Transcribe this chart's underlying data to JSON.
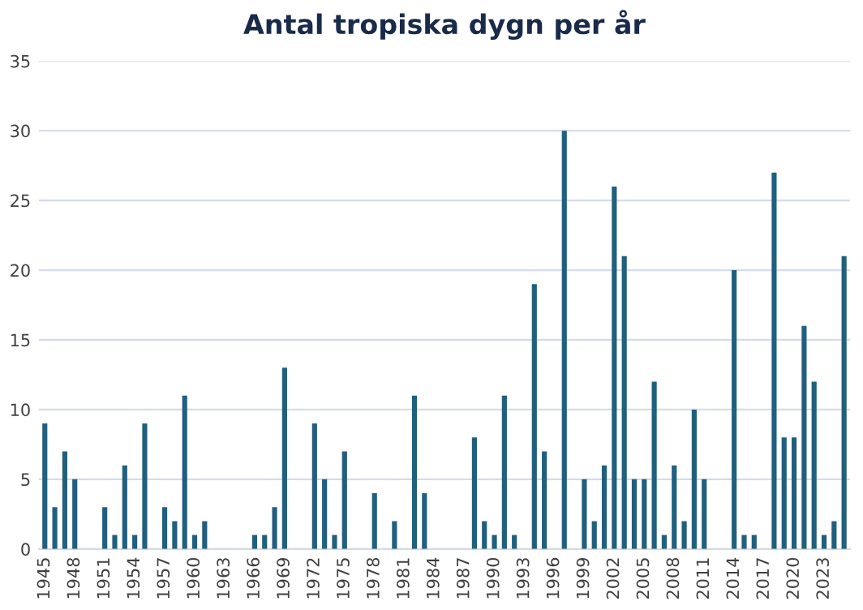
{
  "chart_data": {
    "type": "bar",
    "title": "Antal tropiska dygn per år",
    "categories": [
      "1945",
      null,
      null,
      "1948",
      null,
      null,
      "1951",
      null,
      null,
      "1954",
      null,
      null,
      "1957",
      null,
      null,
      "1960",
      null,
      null,
      "1963",
      null,
      null,
      "1966",
      null,
      null,
      "1969",
      null,
      null,
      "1972",
      null,
      null,
      "1975",
      null,
      null,
      "1978",
      null,
      null,
      "1981",
      null,
      null,
      "1984",
      null,
      null,
      "1987",
      null,
      null,
      "1990",
      null,
      null,
      "1993",
      null,
      null,
      "1996",
      null,
      null,
      "1999",
      null,
      null,
      "2002",
      null,
      null,
      "2005",
      null,
      null,
      "2008",
      null,
      null,
      "2011",
      null,
      null,
      "2014",
      null,
      null,
      "2017",
      null,
      null,
      "2020",
      null,
      null,
      "2023",
      null,
      null
    ],
    "values": [
      9,
      3,
      7,
      5,
      0,
      0,
      3,
      1,
      6,
      1,
      9,
      0,
      3,
      2,
      11,
      1,
      2,
      0,
      0,
      0,
      0,
      1,
      1,
      3,
      13,
      0,
      0,
      9,
      5,
      1,
      7,
      0,
      0,
      4,
      0,
      2,
      0,
      11,
      4,
      0,
      0,
      0,
      0,
      8,
      2,
      1,
      11,
      1,
      0,
      19,
      7,
      0,
      30,
      0,
      5,
      2,
      6,
      26,
      21,
      5,
      5,
      12,
      1,
      6,
      2,
      10,
      5,
      0,
      0,
      20,
      1,
      1,
      0,
      27,
      8,
      8,
      16,
      12,
      1,
      2,
      21
    ],
    "color": "#215f7e",
    "ylim": [
      0,
      35
    ],
    "yticks": [
      0,
      5,
      10,
      15,
      20,
      25,
      30,
      35
    ],
    "grid": "y"
  }
}
